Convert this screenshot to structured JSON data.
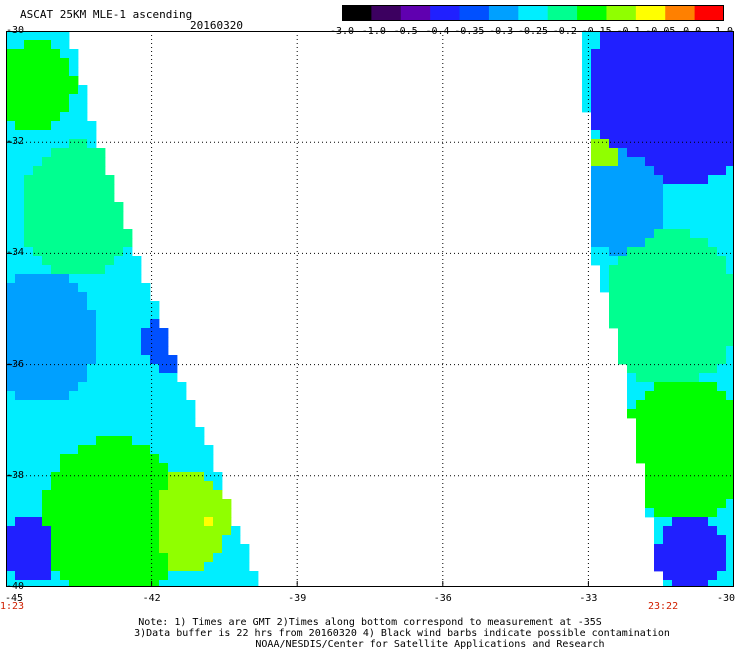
{
  "header": {
    "title": "ASCAT 25KM MLE-1 ascending",
    "date": "20160320"
  },
  "colorbar": {
    "ticks": [
      "-3.0",
      "-1.0",
      "-0.5",
      "-0.4",
      "-0.35",
      "-0.3",
      "-0.25",
      "-0.2",
      "-0.15",
      "-0.1",
      "-0.05",
      "0.0",
      "1.0"
    ],
    "colors": [
      "#000000",
      "#3c0060",
      "#6000b0",
      "#2020ff",
      "#0050ff",
      "#00a0ff",
      "#00eeff",
      "#00ff90",
      "#00ff00",
      "#90ff00",
      "#ffff00",
      "#ff8000",
      "#ff0000"
    ]
  },
  "axes": {
    "y_ticks": [
      "-30",
      "-32",
      "-34",
      "-36",
      "-38",
      "-40"
    ],
    "x_ticks": [
      "-45",
      "-42",
      "-39",
      "-36",
      "-33",
      "-30"
    ],
    "times": [
      "1:23",
      "23:22"
    ]
  },
  "notes": [
    "Note: 1) Times are GMT 2)Times along bottom correspond to measurement at -35S",
    "3)Data buffer is 22 hrs from 20160320 4) Black wind barbs indicate possible contamination",
    "NOAA/NESDIS/Center for Satellite Applications and Research"
  ],
  "chart_data": {
    "type": "heatmap",
    "title": "ASCAT 25KM MLE-1 ascending",
    "date": "20160320",
    "xlabel": "",
    "ylabel": "",
    "xlim": [
      -45,
      -30
    ],
    "ylim": [
      -40,
      -30
    ],
    "grid": true,
    "colorbar_position": "top-right",
    "value_ticks": [
      -3.0,
      -1.0,
      -0.5,
      -0.4,
      -0.35,
      -0.3,
      -0.25,
      -0.2,
      -0.15,
      -0.1,
      -0.05,
      0.0,
      1.0
    ],
    "swaths": [
      {
        "time": "1:23",
        "x_start": -45,
        "east_edge": [
          [
            -30,
            -43.8
          ],
          [
            -32,
            -43.2
          ],
          [
            -34,
            -42.4
          ],
          [
            -36,
            -41.6
          ],
          [
            -38,
            -40.7
          ],
          [
            -40,
            -39.9
          ]
        ],
        "blobs": [
          {
            "x": -44.4,
            "y": -31.0,
            "r": 0.8,
            "value": -0.17
          },
          {
            "x": -43.5,
            "y": -33.2,
            "r": 1.2,
            "value": -0.2
          },
          {
            "x": -44.3,
            "y": -35.5,
            "r": 1.2,
            "value": -0.3
          },
          {
            "x": -41.7,
            "y": -35.6,
            "r": 0.5,
            "value": -0.38
          },
          {
            "x": -42.8,
            "y": -38.8,
            "r": 1.5,
            "value": -0.18
          },
          {
            "x": -41.3,
            "y": -38.8,
            "r": 0.9,
            "value": -0.12
          },
          {
            "x": -40.9,
            "y": -38.8,
            "r": 0.25,
            "value": -0.05
          },
          {
            "x": -44.5,
            "y": -39.3,
            "r": 0.6,
            "value": -0.4
          }
        ]
      },
      {
        "time": "23:22",
        "x_end": -30,
        "west_edge": [
          [
            -30,
            -33.1
          ],
          [
            -32,
            -32.9
          ],
          [
            -34,
            -32.8
          ],
          [
            -36,
            -32.2
          ],
          [
            -38,
            -31.8
          ],
          [
            -40,
            -31.4
          ]
        ],
        "blobs": [
          {
            "x": -31.2,
            "y": -31.0,
            "r": 1.8,
            "value": -0.45
          },
          {
            "x": -32.7,
            "y": -32.3,
            "r": 0.35,
            "value": -0.1
          },
          {
            "x": -32.4,
            "y": -33.0,
            "r": 1.0,
            "value": -0.3
          },
          {
            "x": -31.3,
            "y": -35.0,
            "r": 1.4,
            "value": -0.22
          },
          {
            "x": -31.0,
            "y": -37.5,
            "r": 1.3,
            "value": -0.15
          },
          {
            "x": -30.9,
            "y": -39.4,
            "r": 0.7,
            "value": -0.4
          }
        ]
      }
    ]
  }
}
